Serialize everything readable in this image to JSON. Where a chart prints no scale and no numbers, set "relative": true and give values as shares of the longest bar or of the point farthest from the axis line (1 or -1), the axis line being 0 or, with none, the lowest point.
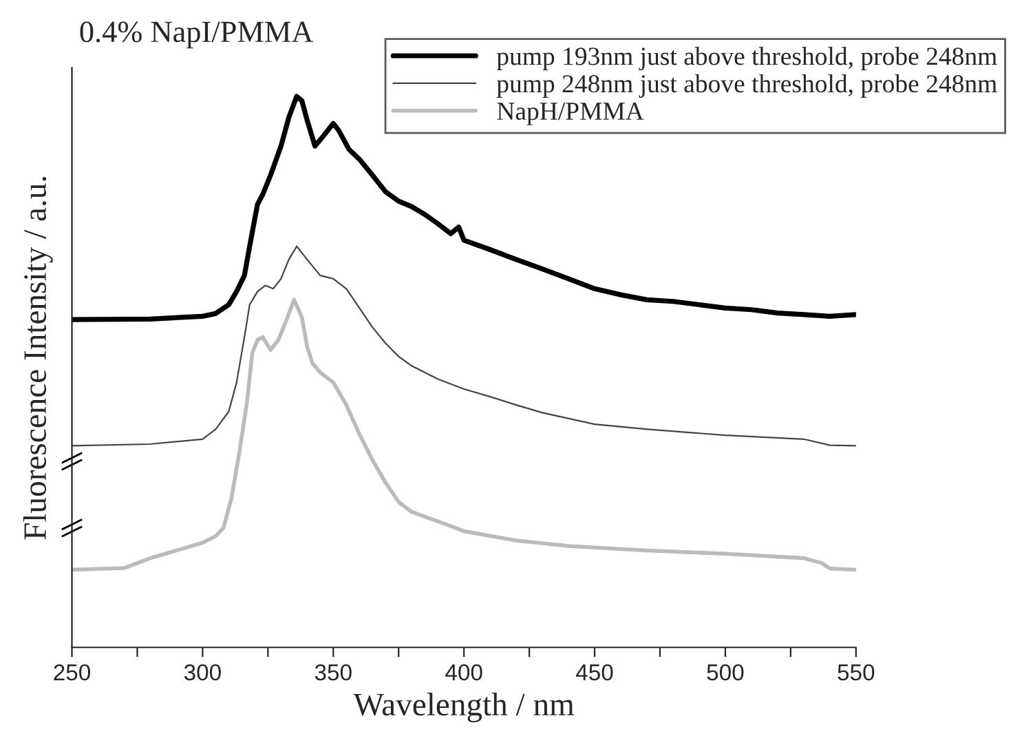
{
  "chart_data": {
    "type": "line",
    "title": "0.4% NapI/PMMA",
    "xlabel": "Wavelength / nm",
    "ylabel": "Fluorescence Intensity / a.u.",
    "relative": true,
    "xlim": [
      250,
      550
    ],
    "xticks": [
      250,
      {
        "value": 275,
        "label": null
      },
      300,
      {
        "value": 325,
        "label": null
      },
      350,
      {
        "value": 375,
        "label": null
      },
      400,
      {
        "value": 425,
        "label": null
      },
      450,
      {
        "value": 475,
        "label": null
      },
      500,
      {
        "value": 525,
        "label": null
      },
      550
    ],
    "tick_labels": "x",
    "grid": false,
    "legend": "top right",
    "marker": "none",
    "line_style": "solid",
    "series": [
      {
        "name": "pump 193nm just above threshold, probe 248nm",
        "color": "#000000",
        "x": [
          250,
          280,
          300,
          305,
          310,
          313,
          316,
          318,
          321,
          323,
          326,
          330,
          333,
          336,
          338,
          340,
          343,
          346,
          350,
          352,
          356,
          360,
          365,
          370,
          375,
          380,
          385,
          390,
          395,
          398,
          400,
          410,
          420,
          430,
          440,
          450,
          460,
          470,
          480,
          490,
          500,
          510,
          520,
          530,
          540,
          550
        ],
        "values": [
          0.595,
          0.596,
          0.601,
          0.606,
          0.622,
          0.646,
          0.675,
          0.728,
          0.804,
          0.822,
          0.857,
          0.91,
          0.962,
          1.0,
          0.992,
          0.957,
          0.91,
          0.927,
          0.951,
          0.939,
          0.904,
          0.886,
          0.857,
          0.827,
          0.81,
          0.8,
          0.786,
          0.769,
          0.751,
          0.763,
          0.739,
          0.722,
          0.704,
          0.687,
          0.669,
          0.651,
          0.64,
          0.631,
          0.628,
          0.622,
          0.616,
          0.613,
          0.607,
          0.604,
          0.601,
          0.604
        ]
      },
      {
        "name": "pump 248nm just above threshold, probe 248nm",
        "color": "#444444",
        "x": [
          250,
          280,
          300,
          305,
          310,
          313,
          316,
          318,
          321,
          324,
          327,
          330,
          333,
          336,
          340,
          345,
          350,
          355,
          360,
          365,
          370,
          375,
          380,
          390,
          400,
          410,
          420,
          430,
          450,
          470,
          500,
          530,
          540,
          550
        ],
        "values": [
          0.366,
          0.369,
          0.378,
          0.396,
          0.428,
          0.481,
          0.563,
          0.622,
          0.646,
          0.657,
          0.651,
          0.669,
          0.704,
          0.728,
          0.704,
          0.675,
          0.669,
          0.651,
          0.616,
          0.581,
          0.552,
          0.528,
          0.511,
          0.487,
          0.469,
          0.455,
          0.44,
          0.426,
          0.405,
          0.396,
          0.385,
          0.378,
          0.367,
          0.366
        ]
      },
      {
        "name": "NapH/PMMA",
        "color": "#bbbbbb",
        "x": [
          250,
          270,
          280,
          290,
          300,
          305,
          308,
          311,
          314,
          317,
          319,
          321,
          323,
          326,
          329,
          332,
          335,
          338,
          340,
          342,
          345,
          350,
          355,
          360,
          365,
          370,
          375,
          380,
          390,
          400,
          420,
          440,
          470,
          500,
          530,
          537,
          540,
          550
        ],
        "values": [
          0.141,
          0.144,
          0.162,
          0.176,
          0.19,
          0.202,
          0.217,
          0.27,
          0.352,
          0.446,
          0.534,
          0.558,
          0.563,
          0.54,
          0.558,
          0.593,
          0.631,
          0.599,
          0.546,
          0.516,
          0.499,
          0.481,
          0.44,
          0.387,
          0.34,
          0.299,
          0.264,
          0.246,
          0.229,
          0.211,
          0.194,
          0.184,
          0.176,
          0.17,
          0.162,
          0.153,
          0.143,
          0.141
        ]
      }
    ]
  }
}
